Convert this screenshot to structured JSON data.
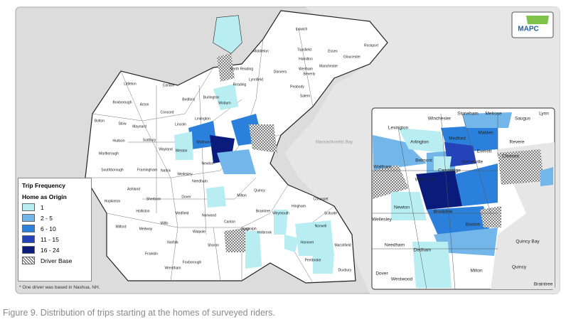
{
  "logo": "MAPC",
  "legend": {
    "title_1": "Trip Frequency",
    "title_2": "Home as Origin",
    "items": [
      {
        "label": "1",
        "color": "#b8eef2"
      },
      {
        "label": "2 - 5",
        "color": "#72b6ea"
      },
      {
        "label": "6 - 10",
        "color": "#2b80db"
      },
      {
        "label": "11 - 15",
        "color": "#2443b8"
      },
      {
        "label": "16 - 24",
        "color": "#0b1b7c"
      },
      {
        "label": "Driver Base",
        "pattern": "hatch"
      }
    ]
  },
  "footnote": "* One driver was based in Nashua, NH.",
  "caption": "Figure 9. Distribution of trips starting at the homes of surveyed riders.",
  "water_label": "Massachusetts Bay",
  "main_map": {
    "towns": [
      "Ipswich",
      "Topsfield",
      "Hamilton",
      "Wenham",
      "Manchester",
      "Rockport",
      "Gloucester",
      "Essex",
      "Middleton",
      "Danvers",
      "Beverly",
      "North Reading",
      "Reading",
      "Peabody",
      "Salem",
      "Lynnfield",
      "Littleton",
      "Carlisle",
      "Bedford",
      "Burlington",
      "Woburn",
      "Boxborough",
      "Acton",
      "Concord",
      "Lexington",
      "Lincoln",
      "Sudbury",
      "Wayland",
      "Weston",
      "Waltham",
      "Newton",
      "Bolton",
      "Stow",
      "Maynard",
      "Hudson",
      "Marlborough",
      "Southborough",
      "Framingham",
      "Natick",
      "Wellesley",
      "Needham",
      "Ashland",
      "Sherborn",
      "Dover",
      "Hopkinton",
      "Holliston",
      "Medfield",
      "Norwood",
      "Milford",
      "Medway",
      "Millis",
      "Walpole",
      "Franklin",
      "Norfolk",
      "Sharon",
      "Foxborough",
      "Wrentham",
      "Canton",
      "Milton",
      "Quincy",
      "Braintree",
      "Weymouth",
      "Hingham",
      "Cohasset",
      "Scituate",
      "Norwell",
      "Hanover",
      "Marshfield",
      "Pembroke",
      "Duxbury",
      "Holbrook",
      "Randolph"
    ]
  },
  "inset": {
    "towns": [
      "Lexington",
      "Winchester",
      "Stoneham",
      "Melrose",
      "Saugus",
      "Lynn",
      "Arlington",
      "Medford",
      "Malden",
      "Revere",
      "Everett",
      "Belmont",
      "Cambridge",
      "Somerville",
      "Waltham",
      "Watertown",
      "Chelsea",
      "Newton",
      "Brookline",
      "Boston",
      "Wellesley",
      "Needham",
      "Dedham",
      "Milton",
      "Quincy",
      "Quincy Bay",
      "Dover",
      "Westwood",
      "Braintree"
    ]
  }
}
